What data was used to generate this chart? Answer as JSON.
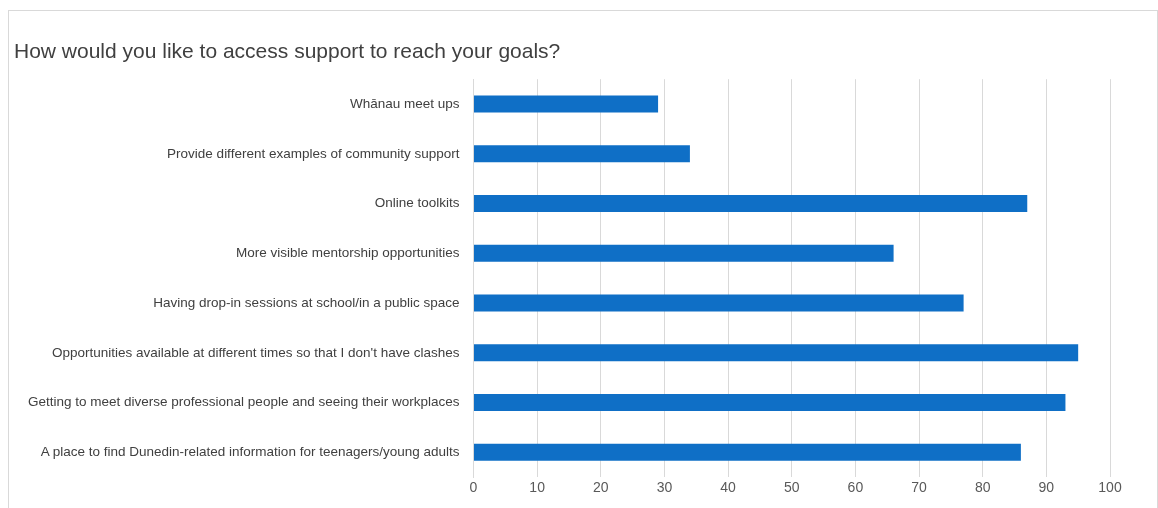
{
  "chart_data": {
    "type": "bar",
    "orientation": "horizontal",
    "title": "How would you like to access support to reach your goals?",
    "categories": [
      "Whānau meet ups",
      "Provide different examples of community support",
      "Online toolkits",
      "More visible mentorship opportunities",
      "Having drop-in sessions at school/in a public space",
      "Opportunities available at different times so that I don't have clashes",
      "Getting to meet diverse professional people and seeing their workplaces",
      "A place to find Dunedin-related information for teenagers/young adults"
    ],
    "values": [
      29,
      34,
      87,
      66,
      77,
      95,
      93,
      86
    ],
    "color": "#0f6fc6",
    "xlim": [
      0,
      100
    ],
    "xticks": [
      0,
      10,
      20,
      30,
      40,
      50,
      60,
      70,
      80,
      90,
      100
    ],
    "grid": "x",
    "legend": false
  }
}
